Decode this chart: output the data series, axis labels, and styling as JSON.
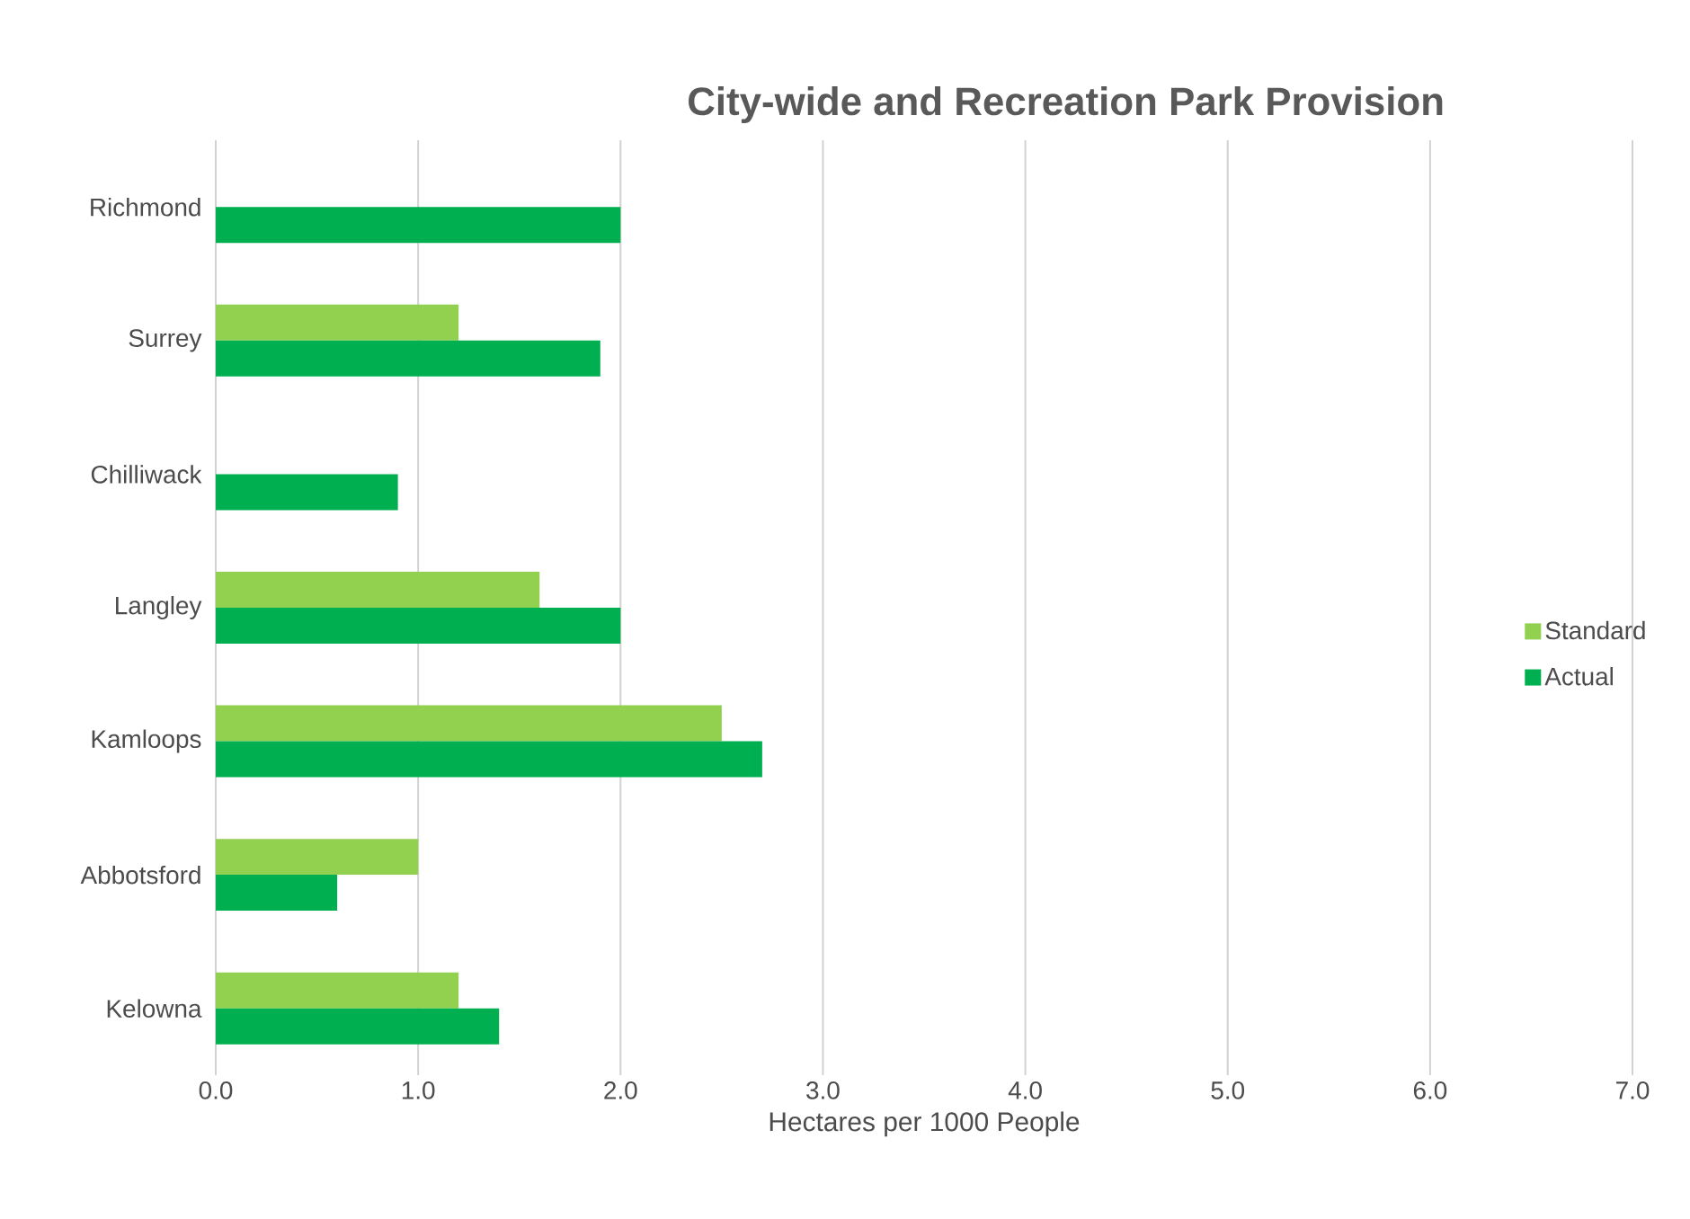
{
  "chart_data": {
    "type": "bar",
    "orientation": "horizontal",
    "title": "City-wide  and Recreation Park Provision",
    "xlabel": "Hectares per 1000 People",
    "categories": [
      "Richmond",
      "Surrey",
      "Chilliwack",
      "Langley",
      "Kamloops",
      "Abbotsford",
      "Kelowna"
    ],
    "series": [
      {
        "name": "Standard",
        "color": "#92d050",
        "values": [
          null,
          1.2,
          null,
          1.6,
          2.5,
          1.0,
          1.2
        ]
      },
      {
        "name": "Actual",
        "color": "#00b050",
        "values": [
          2.0,
          1.9,
          0.9,
          2.0,
          2.7,
          0.6,
          1.4
        ]
      }
    ],
    "xlim": [
      0,
      7
    ],
    "xticks": [
      {
        "value": 0,
        "label": "0.0"
      },
      {
        "value": 1,
        "label": "1.0"
      },
      {
        "value": 2,
        "label": "2.0"
      },
      {
        "value": 3,
        "label": "3.0"
      },
      {
        "value": 4,
        "label": "4.0"
      },
      {
        "value": 5,
        "label": "5.0"
      },
      {
        "value": 6,
        "label": "6.0"
      },
      {
        "value": 7,
        "label": "7.0"
      }
    ],
    "grid": "x",
    "legend": "right"
  }
}
